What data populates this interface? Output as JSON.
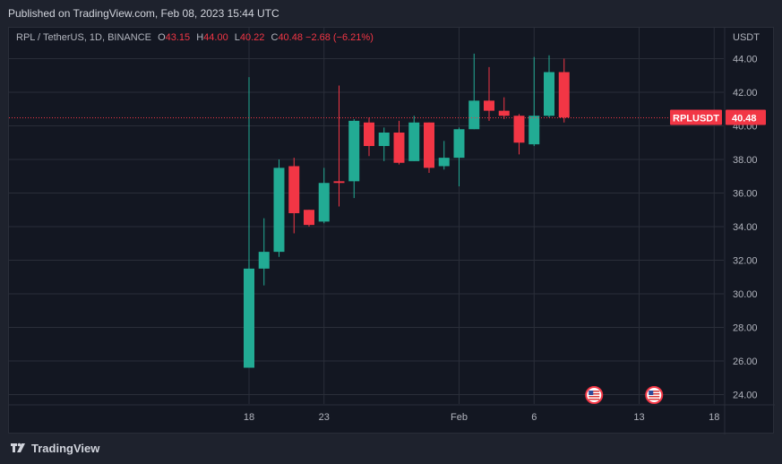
{
  "header": {
    "published": "Published on TradingView.com, Feb 08, 2023 15:44 UTC"
  },
  "legend": {
    "symbol": "RPL / TetherUS, 1D, BINANCE",
    "open_key": "O",
    "open": "43.15",
    "high_key": "H",
    "high": "44.00",
    "low_key": "L",
    "low": "40.22",
    "close_key": "C",
    "close": "40.48",
    "change": "−2.68 (−6.21%)"
  },
  "footer": {
    "brand": "TradingView"
  },
  "colors": {
    "up": "#22ab94",
    "down": "#f23645",
    "bg": "#131722",
    "grid": "#2a2e39",
    "text": "#b2b5be"
  },
  "chart_data": {
    "type": "candlestick",
    "currency": "USDT",
    "ylim": [
      24,
      44.8
    ],
    "y_ticks": [
      24,
      26,
      28,
      30,
      32,
      34,
      36,
      38,
      40,
      42,
      44
    ],
    "y_tick_labels": [
      "24.00",
      "26.00",
      "28.00",
      "30.00",
      "32.00",
      "34.00",
      "36.00",
      "38.00",
      "40.00",
      "42.00",
      "44.00"
    ],
    "x_ticks": [
      {
        "date": "2023-01-18",
        "label": "18"
      },
      {
        "date": "2023-01-23",
        "label": "23"
      },
      {
        "date": "2023-02-01",
        "label": "Feb"
      },
      {
        "date": "2023-02-06",
        "label": "6"
      },
      {
        "date": "2023-02-13",
        "label": "13"
      },
      {
        "date": "2023-02-18",
        "label": "18"
      }
    ],
    "candles": [
      {
        "date": "2023-01-18",
        "open": 25.6,
        "high": 42.9,
        "low": 25.6,
        "close": 31.5
      },
      {
        "date": "2023-01-19",
        "open": 31.5,
        "high": 34.5,
        "low": 30.5,
        "close": 32.5
      },
      {
        "date": "2023-01-20",
        "open": 32.5,
        "high": 38.0,
        "low": 32.2,
        "close": 37.5
      },
      {
        "date": "2023-01-21",
        "open": 37.6,
        "high": 38.1,
        "low": 33.6,
        "close": 34.8
      },
      {
        "date": "2023-01-22",
        "open": 35.0,
        "high": 35.0,
        "low": 34.0,
        "close": 34.1
      },
      {
        "date": "2023-01-23",
        "open": 34.3,
        "high": 37.5,
        "low": 34.2,
        "close": 36.6
      },
      {
        "date": "2023-01-24",
        "open": 36.7,
        "high": 42.4,
        "low": 35.2,
        "close": 36.6
      },
      {
        "date": "2023-01-25",
        "open": 36.7,
        "high": 40.4,
        "low": 35.7,
        "close": 40.3
      },
      {
        "date": "2023-01-26",
        "open": 40.2,
        "high": 40.5,
        "low": 38.2,
        "close": 38.8
      },
      {
        "date": "2023-01-27",
        "open": 38.8,
        "high": 39.9,
        "low": 37.9,
        "close": 39.6
      },
      {
        "date": "2023-01-28",
        "open": 39.6,
        "high": 40.3,
        "low": 37.7,
        "close": 37.8
      },
      {
        "date": "2023-01-29",
        "open": 37.9,
        "high": 40.6,
        "low": 37.9,
        "close": 40.2
      },
      {
        "date": "2023-01-30",
        "open": 40.2,
        "high": 40.2,
        "low": 37.2,
        "close": 37.5
      },
      {
        "date": "2023-01-31",
        "open": 37.6,
        "high": 39.1,
        "low": 37.4,
        "close": 38.1
      },
      {
        "date": "2023-02-01",
        "open": 38.1,
        "high": 39.9,
        "low": 36.4,
        "close": 39.8
      },
      {
        "date": "2023-02-02",
        "open": 39.8,
        "high": 44.3,
        "low": 39.8,
        "close": 41.5
      },
      {
        "date": "2023-02-03",
        "open": 41.5,
        "high": 43.5,
        "low": 40.3,
        "close": 40.9
      },
      {
        "date": "2023-02-04",
        "open": 40.9,
        "high": 41.7,
        "low": 40.4,
        "close": 40.6
      },
      {
        "date": "2023-02-05",
        "open": 40.6,
        "high": 40.7,
        "low": 38.3,
        "close": 39.0
      },
      {
        "date": "2023-02-06",
        "open": 38.9,
        "high": 44.1,
        "low": 38.8,
        "close": 40.6
      },
      {
        "date": "2023-02-07",
        "open": 40.6,
        "high": 44.2,
        "low": 40.5,
        "close": 43.2
      },
      {
        "date": "2023-02-08",
        "open": 43.2,
        "high": 44.0,
        "low": 40.2,
        "close": 40.5
      }
    ],
    "last_price": {
      "symbol": "RPLUSDT",
      "value": 40.48,
      "label": "40.48"
    },
    "events": [
      {
        "date": "2023-02-10",
        "icon": "us-flag-icon"
      },
      {
        "date": "2023-02-14",
        "icon": "us-flag-icon"
      }
    ],
    "grid": true
  }
}
